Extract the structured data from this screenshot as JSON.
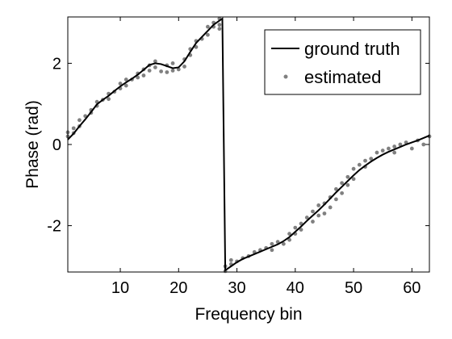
{
  "chart_data": {
    "type": "line",
    "title": "",
    "xlabel": "Frequency bin",
    "ylabel": "Phase (rad)",
    "xlim": [
      1,
      63
    ],
    "ylim": [
      -3.1416,
      3.1416
    ],
    "xticks": [
      10,
      20,
      30,
      40,
      50,
      60
    ],
    "xtick_labels": [
      "10",
      "20",
      "30",
      "40",
      "50",
      "60"
    ],
    "yticks": [
      -2,
      0,
      2
    ],
    "ytick_labels": [
      "-2",
      "0",
      "2"
    ],
    "grid": false,
    "legend_position": "top-right",
    "series": [
      {
        "name": "ground truth",
        "style": "line",
        "color": "#000000",
        "x": [
          1,
          2,
          3,
          4,
          5,
          6,
          7,
          8,
          9,
          10,
          11,
          12,
          13,
          14,
          15,
          16,
          17,
          18,
          19,
          20,
          21,
          22,
          23,
          24,
          25,
          26,
          27,
          27.5,
          28,
          29,
          30,
          31,
          32,
          33,
          34,
          35,
          36,
          37,
          38,
          39,
          40,
          41,
          42,
          43,
          44,
          45,
          46,
          47,
          48,
          49,
          50,
          51,
          52,
          53,
          54,
          55,
          56,
          57,
          58,
          59,
          60,
          61,
          62,
          63
        ],
        "y": [
          0.12,
          0.27,
          0.45,
          0.62,
          0.8,
          0.99,
          1.1,
          1.2,
          1.32,
          1.43,
          1.53,
          1.62,
          1.72,
          1.84,
          1.96,
          2.0,
          1.98,
          1.93,
          1.88,
          1.9,
          2.05,
          2.28,
          2.5,
          2.65,
          2.8,
          2.95,
          3.05,
          3.1,
          -3.1,
          -3.0,
          -2.9,
          -2.82,
          -2.76,
          -2.7,
          -2.64,
          -2.58,
          -2.52,
          -2.46,
          -2.38,
          -2.28,
          -2.15,
          -2.02,
          -1.88,
          -1.75,
          -1.62,
          -1.48,
          -1.33,
          -1.18,
          -1.04,
          -0.9,
          -0.76,
          -0.63,
          -0.52,
          -0.42,
          -0.33,
          -0.25,
          -0.18,
          -0.12,
          -0.06,
          0.0,
          0.05,
          0.1,
          0.16,
          0.22
        ]
      },
      {
        "name": "estimated",
        "style": "points",
        "color": "#808080",
        "x": [
          1,
          1,
          2,
          2,
          3,
          3,
          4,
          5,
          5,
          6,
          6,
          7,
          8,
          8,
          9,
          10,
          10,
          11,
          11,
          12,
          13,
          13,
          14,
          14,
          15,
          15,
          16,
          16,
          17,
          18,
          18,
          19,
          19,
          20,
          21,
          21,
          22,
          22,
          23,
          23,
          24,
          25,
          25,
          26,
          26,
          27,
          27,
          27,
          28,
          28,
          29,
          29,
          30,
          31,
          32,
          33,
          34,
          35,
          36,
          36,
          37,
          38,
          39,
          39,
          40,
          40,
          41,
          41,
          42,
          43,
          43,
          44,
          44,
          45,
          45,
          46,
          46,
          47,
          47,
          48,
          48,
          49,
          49,
          50,
          50,
          51,
          52,
          52,
          53,
          54,
          55,
          56,
          57,
          57,
          58,
          59,
          60,
          61,
          62,
          63
        ],
        "y": [
          0.2,
          0.3,
          0.28,
          0.4,
          0.45,
          0.6,
          0.7,
          0.78,
          0.85,
          0.95,
          1.05,
          1.1,
          1.12,
          1.25,
          1.3,
          1.38,
          1.5,
          1.45,
          1.6,
          1.6,
          1.75,
          1.65,
          1.85,
          1.7,
          1.95,
          1.82,
          2.05,
          1.9,
          1.8,
          1.95,
          1.78,
          1.82,
          2.0,
          1.85,
          2.1,
          1.92,
          2.2,
          2.35,
          2.4,
          2.55,
          2.6,
          2.7,
          2.9,
          2.9,
          3.0,
          3.1,
          2.95,
          2.85,
          -3.12,
          -3.0,
          -2.95,
          -2.85,
          -2.88,
          -2.8,
          -2.75,
          -2.65,
          -2.6,
          -2.55,
          -2.45,
          -2.6,
          -2.4,
          -2.45,
          -2.2,
          -2.35,
          -2.05,
          -2.2,
          -1.95,
          -2.1,
          -1.8,
          -1.65,
          -1.9,
          -1.5,
          -1.75,
          -1.45,
          -1.7,
          -1.3,
          -1.55,
          -1.1,
          -1.35,
          -0.95,
          -1.2,
          -0.8,
          -1.0,
          -0.6,
          -0.85,
          -0.5,
          -0.4,
          -0.55,
          -0.35,
          -0.2,
          -0.15,
          -0.1,
          -0.05,
          -0.2,
          0.0,
          0.05,
          -0.1,
          0.1,
          0.0,
          0.2
        ]
      }
    ]
  }
}
